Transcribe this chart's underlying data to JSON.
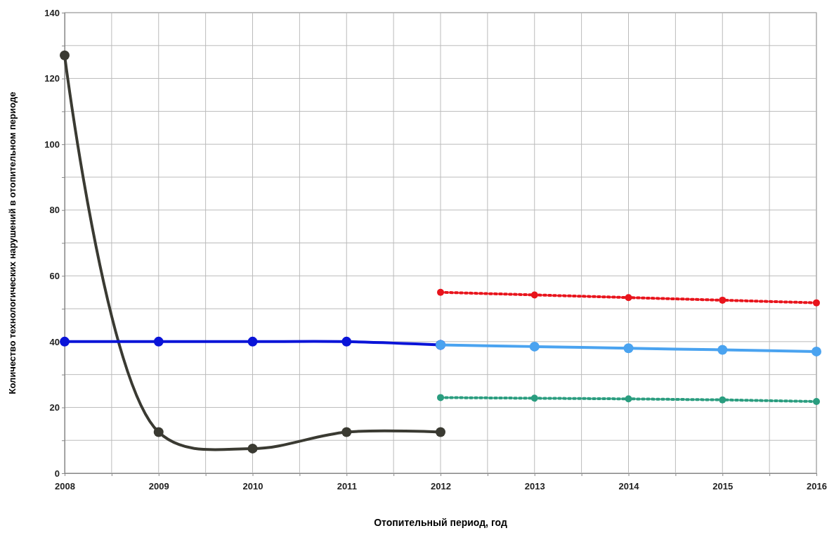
{
  "chart_data": {
    "type": "line",
    "xlabel": "Отопительный период, год",
    "ylabel": "Количество технологических нарушений в отопительном периоде",
    "xlim": [
      2008,
      2016
    ],
    "xticks": [
      2008,
      {
        "value": 2008.5,
        "label": null
      },
      2009,
      {
        "value": 2009.5,
        "label": null
      },
      2010,
      {
        "value": 2010.5,
        "label": null
      },
      2011,
      {
        "value": 2011.5,
        "label": null
      },
      2012,
      {
        "value": 2012.5,
        "label": null
      },
      2013,
      {
        "value": 2013.5,
        "label": null
      },
      2014,
      {
        "value": 2014.5,
        "label": null
      },
      2015,
      {
        "value": 2015.5,
        "label": null
      },
      2016
    ],
    "ylim": [
      0,
      140
    ],
    "yticks": [
      0,
      {
        "value": 10,
        "label": null
      },
      20,
      {
        "value": 30,
        "label": null
      },
      40,
      {
        "value": 50,
        "label": null
      },
      60,
      {
        "value": 70,
        "label": null
      },
      80,
      {
        "value": 90,
        "label": null
      },
      100,
      {
        "value": 110,
        "label": null
      },
      120,
      {
        "value": 130,
        "label": null
      },
      140
    ],
    "grid": true,
    "marker": "circle",
    "series": [
      {
        "color": "#3a3a32",
        "x": [
          2008,
          2009,
          2010,
          2011,
          2012
        ],
        "values": [
          127,
          12.5,
          7.5,
          12.5,
          12.5
        ],
        "line_style": "solid"
      },
      {
        "color": "#0a14d8",
        "x": [
          2008,
          2009,
          2010,
          2011,
          2012
        ],
        "values": [
          40,
          40,
          40,
          40,
          39
        ],
        "line_style": "solid"
      },
      {
        "color": "#4aa3f0",
        "x": [
          2012,
          2013,
          2014,
          2015,
          2016
        ],
        "values": [
          39,
          38.5,
          38,
          37.5,
          37
        ],
        "line_style": "solid"
      },
      {
        "color": "#e8141c",
        "x": [
          2012,
          2013,
          2014,
          2015,
          2016
        ],
        "values": [
          55,
          54.2,
          53.4,
          52.6,
          51.8
        ],
        "line_style": "dotted"
      },
      {
        "color": "#2a9d7f",
        "x": [
          2012,
          2013,
          2014,
          2015,
          2016
        ],
        "values": [
          23,
          22.8,
          22.6,
          22.3,
          21.8
        ],
        "line_style": "dotted"
      }
    ]
  }
}
